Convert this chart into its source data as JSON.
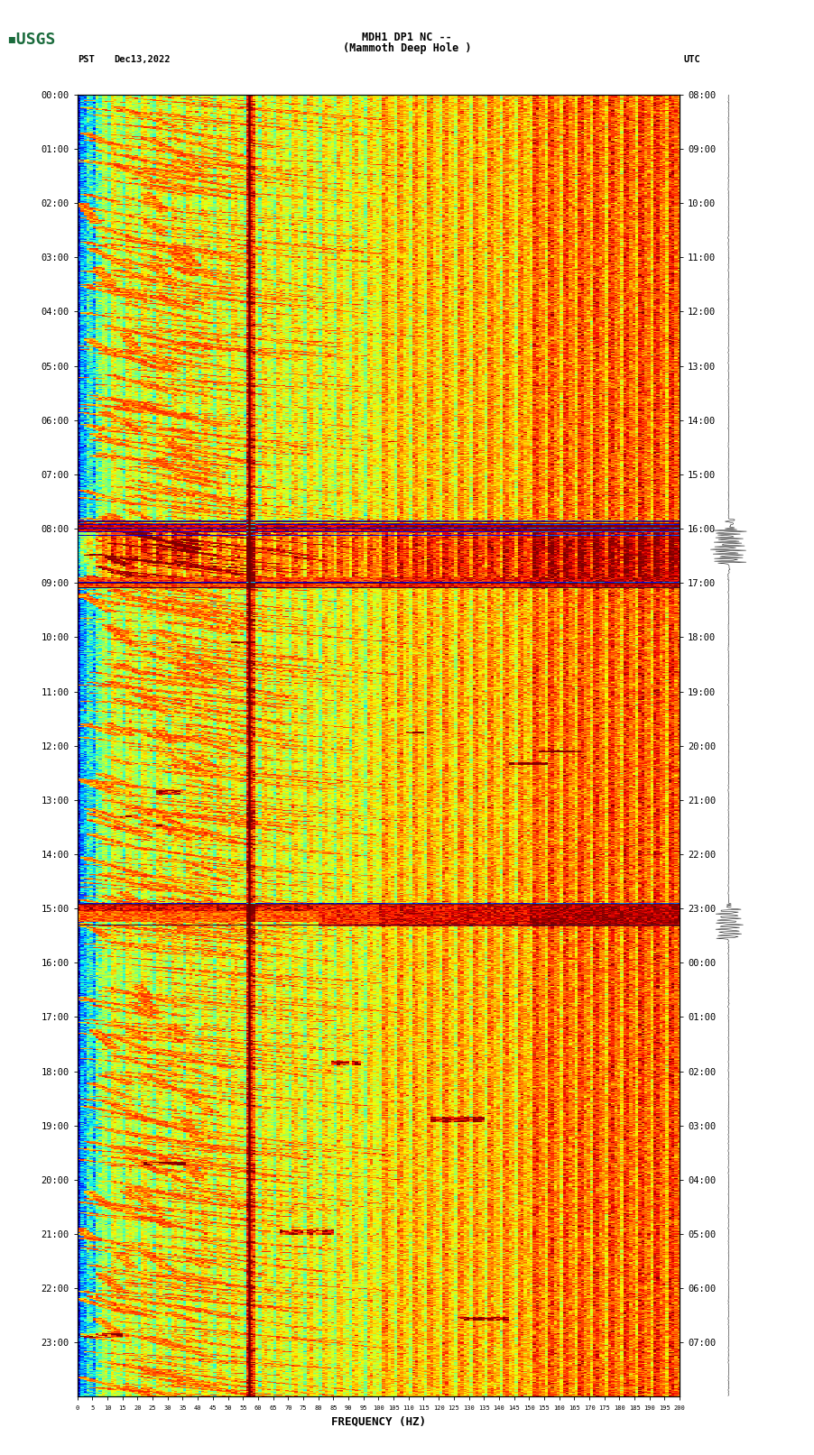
{
  "title_line1": "MDH1 DP1 NC --",
  "title_line2": "(Mammoth Deep Hole )",
  "left_label": "PST",
  "left_date": "Dec13,2022",
  "right_label": "UTC",
  "left_times": [
    "00:00",
    "01:00",
    "02:00",
    "03:00",
    "04:00",
    "05:00",
    "06:00",
    "07:00",
    "08:00",
    "09:00",
    "10:00",
    "11:00",
    "12:00",
    "13:00",
    "14:00",
    "15:00",
    "16:00",
    "17:00",
    "18:00",
    "19:00",
    "20:00",
    "21:00",
    "22:00",
    "23:00"
  ],
  "right_times": [
    "08:00",
    "09:00",
    "10:00",
    "11:00",
    "12:00",
    "13:00",
    "14:00",
    "15:00",
    "16:00",
    "17:00",
    "18:00",
    "19:00",
    "20:00",
    "21:00",
    "22:00",
    "23:00",
    "00:00",
    "01:00",
    "02:00",
    "03:00",
    "04:00",
    "05:00",
    "06:00",
    "07:00"
  ],
  "xlabel": "FREQUENCY (HZ)",
  "n_times": 1440,
  "n_freqs": 200,
  "background_color": "#ffffff",
  "usgs_color": "#1a6b3c",
  "vline_color": "#8B0000",
  "hline_color": "#8B0000"
}
